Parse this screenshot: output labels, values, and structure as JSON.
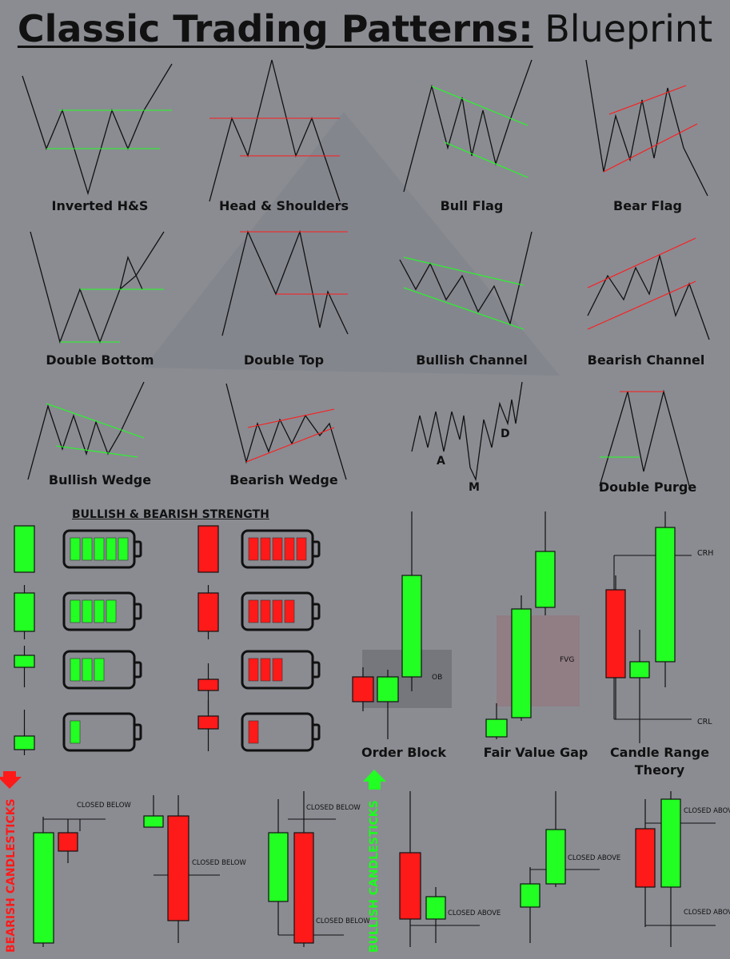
{
  "title": {
    "bold": "Classic Trading Patterns:",
    "regular": "Blueprint"
  },
  "colors": {
    "background": "#8a8c92",
    "bull": "#22ff22",
    "bear": "#ff1a1a",
    "line": "#111111"
  },
  "patterns": [
    {
      "name": "inverted-hs",
      "label": "Inverted H&S"
    },
    {
      "name": "head-shoulders",
      "label": "Head & Shoulders"
    },
    {
      "name": "bull-flag",
      "label": "Bull Flag"
    },
    {
      "name": "bear-flag",
      "label": "Bear Flag"
    },
    {
      "name": "double-bottom",
      "label": "Double Bottom"
    },
    {
      "name": "double-top",
      "label": "Double Top"
    },
    {
      "name": "bullish-channel",
      "label": "Bullish Channel"
    },
    {
      "name": "bearish-channel",
      "label": "Bearish Channel"
    },
    {
      "name": "bullish-wedge",
      "label": "Bullish Wedge"
    },
    {
      "name": "bearish-wedge",
      "label": "Bearish Wedge"
    },
    {
      "name": "amd",
      "label": ""
    },
    {
      "name": "double-purge",
      "label": "Double Purge"
    }
  ],
  "amd_letters": {
    "a": "A",
    "m": "M",
    "d": "D"
  },
  "strength": {
    "title": "BULLISH & BEARISH STRENGTH",
    "levels": [
      5,
      4,
      3,
      1
    ]
  },
  "setups": {
    "order_block": {
      "label": "Order Block",
      "tag": "OB"
    },
    "fair_value_gap": {
      "label": "Fair Value Gap",
      "tag": "FVG"
    },
    "crt": {
      "label_line1": "Candle Range",
      "label_line2": "Theory",
      "high": "CRH",
      "low": "CRL"
    }
  },
  "bearish_candles": {
    "title": "BEARISH CANDLESTICKS",
    "notes": [
      "CLOSED BELOW",
      "CLOSED BELOW",
      "CLOSED BELOW",
      "CLOSED BELOW"
    ]
  },
  "bullish_candles": {
    "title": "BULLISH CANDLESTICKS",
    "notes": [
      "CLOSED ABOVE",
      "CLOSED ABOVE",
      "CLOSED ABOVE",
      "CLOSED ABOVE"
    ]
  }
}
